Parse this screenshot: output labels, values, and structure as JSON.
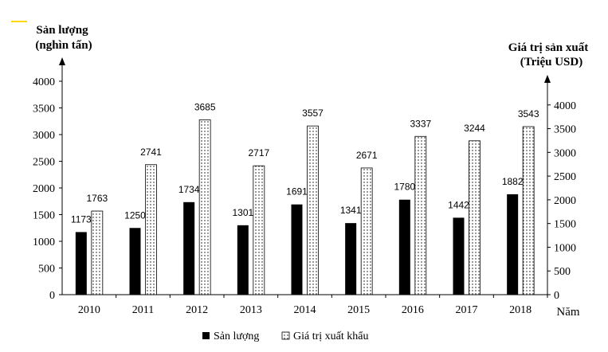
{
  "chart_data": {
    "type": "bar",
    "categories": [
      "2010",
      "2011",
      "2012",
      "2013",
      "2014",
      "2015",
      "2016",
      "2017",
      "2018"
    ],
    "series": [
      {
        "name": "Sản lượng",
        "axis": "left",
        "fill": "solid-black",
        "values": [
          1173,
          1250,
          1734,
          1301,
          1691,
          1341,
          1780,
          1442,
          1882
        ]
      },
      {
        "name": "Giá trị xuất khẩu",
        "axis": "right",
        "fill": "dotted",
        "values": [
          1763,
          2741,
          3685,
          2717,
          3557,
          2671,
          3337,
          3244,
          3543
        ]
      }
    ],
    "left_axis": {
      "label_line1": "Sản lượng",
      "label_line2": "(nghìn tấn)",
      "ylim": [
        0,
        4000
      ],
      "ticks": [
        0,
        500,
        1000,
        1500,
        2000,
        2500,
        3000,
        3500,
        4000
      ]
    },
    "right_axis": {
      "label_line1": "Giá trị sản xuất",
      "label_line2": "(Triệu USD)",
      "ylim": [
        0,
        4500
      ],
      "ticks": [
        0,
        500,
        1000,
        1500,
        2000,
        2500,
        3000,
        3500,
        4000
      ]
    },
    "xlabel": "Năm",
    "legend": {
      "placement": "bottom",
      "items": [
        "Sản lượng",
        "Giá trị xuất khẩu"
      ]
    },
    "grid": false,
    "colors": {
      "bar_solid": "#000000",
      "bar_dotted_bg": "#ffffff",
      "bar_dotted_dot": "#000000",
      "axis": "#000000",
      "accent_mark": "#ffd700"
    }
  }
}
